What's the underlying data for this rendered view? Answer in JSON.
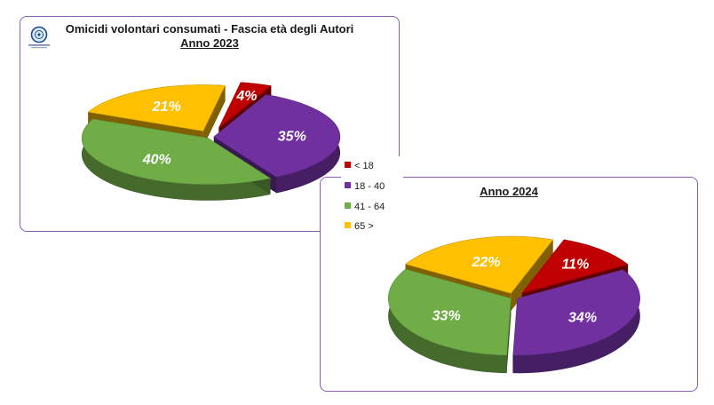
{
  "title": "Omicidi volontari consumati  - Fascia età degli Autori",
  "chart_data": [
    {
      "type": "pie",
      "subtitle": "Anno 2023",
      "categories": [
        "< 18",
        "18 - 40",
        "41 - 64",
        "65 >"
      ],
      "values": [
        4,
        35,
        40,
        21
      ],
      "labels": [
        "4%",
        "35%",
        "40%",
        "21%"
      ],
      "colors": [
        "#c00000",
        "#7030a0",
        "#70ad47",
        "#ffc000"
      ],
      "style": "3d-exploded"
    },
    {
      "type": "pie",
      "subtitle": "Anno 2024",
      "categories": [
        "< 18",
        "18 - 40",
        "41 - 64",
        "65 >"
      ],
      "values": [
        11,
        34,
        33,
        22
      ],
      "labels": [
        "11%",
        "34%",
        "33%",
        "22%"
      ],
      "colors": [
        "#c00000",
        "#7030a0",
        "#70ad47",
        "#ffc000"
      ],
      "style": "3d-exploded"
    }
  ],
  "legend": {
    "placement": "right",
    "items": [
      {
        "label": "< 18",
        "color": "#c00000"
      },
      {
        "label": "18 - 40",
        "color": "#7030a0"
      },
      {
        "label": "41 - 64",
        "color": "#70ad47"
      },
      {
        "label": "65 >",
        "color": "#ffc000"
      }
    ]
  }
}
